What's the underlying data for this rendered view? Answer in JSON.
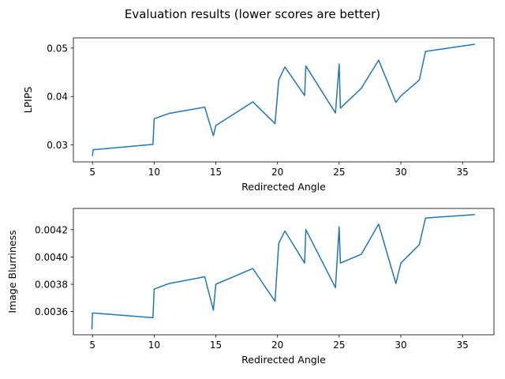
{
  "figure": {
    "title": "Evaluation results (lower scores are better)"
  },
  "colors": {
    "series": "#1f77b4",
    "axes": "#000000",
    "background": "#ffffff"
  },
  "chart_data": [
    {
      "type": "line",
      "xlabel": "Redirected Angle",
      "ylabel": "LPIPS",
      "xlim": [
        3.45,
        37.55
      ],
      "ylim": [
        0.0265,
        0.0521
      ],
      "xticks": [
        5,
        10,
        15,
        20,
        25,
        30,
        35
      ],
      "yticks": [
        0.03,
        0.04,
        0.05
      ],
      "ytick_labels": [
        "0.03",
        "0.04",
        "0.05"
      ],
      "grid": false,
      "series": [
        {
          "x": [
            5.0,
            5.05,
            9.9,
            10.0,
            11.2,
            14.1,
            14.8,
            15.0,
            18.0,
            19.8,
            20.1,
            20.6,
            22.2,
            22.3,
            24.7,
            25.0,
            25.1,
            26.8,
            28.2,
            29.6,
            30.0,
            31.5,
            32.0,
            36.0
          ],
          "y": [
            0.0277,
            0.029,
            0.0301,
            0.0354,
            0.0365,
            0.0378,
            0.0319,
            0.034,
            0.0389,
            0.0344,
            0.0434,
            0.0461,
            0.0402,
            0.0463,
            0.0366,
            0.0467,
            0.0376,
            0.0417,
            0.0475,
            0.0388,
            0.0401,
            0.0434,
            0.0493,
            0.0508
          ]
        }
      ]
    },
    {
      "type": "line",
      "xlabel": "Redirected Angle",
      "ylabel": "Image Blurriness",
      "xlim": [
        3.45,
        37.55
      ],
      "ylim": [
        0.00343,
        0.004355
      ],
      "xticks": [
        5,
        10,
        15,
        20,
        25,
        30,
        35
      ],
      "yticks": [
        0.0036,
        0.0038,
        0.004,
        0.0042
      ],
      "ytick_labels": [
        "0.0036",
        "0.0038",
        "0.0040",
        "0.0042"
      ],
      "grid": false,
      "series": [
        {
          "x": [
            4.95,
            5.0,
            9.9,
            10.0,
            11.2,
            14.1,
            14.8,
            15.0,
            18.0,
            19.8,
            20.1,
            20.6,
            22.2,
            22.3,
            24.7,
            25.0,
            25.1,
            26.8,
            28.2,
            29.6,
            30.0,
            31.5,
            32.0,
            36.0
          ],
          "y": [
            0.00347,
            0.00359,
            0.003555,
            0.003765,
            0.003805,
            0.003855,
            0.00361,
            0.0038,
            0.003915,
            0.003675,
            0.0041,
            0.00419,
            0.003955,
            0.0042,
            0.003775,
            0.00422,
            0.003955,
            0.00402,
            0.00424,
            0.003805,
            0.003955,
            0.00409,
            0.004285,
            0.00431
          ]
        }
      ]
    }
  ]
}
